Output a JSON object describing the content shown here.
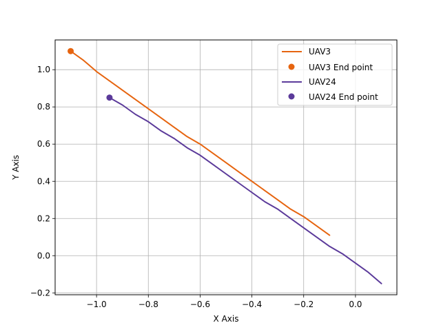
{
  "chart_data": {
    "type": "line",
    "title": "",
    "xlabel": "X Axis",
    "ylabel": "Y Axis",
    "xlim": [
      -1.16,
      0.16
    ],
    "ylim": [
      -0.21,
      1.16
    ],
    "xticks": [
      -1.0,
      -0.8,
      -0.6,
      -0.4,
      -0.2,
      0.0
    ],
    "xtick_labels": [
      "−1.0",
      "−0.8",
      "−0.6",
      "−0.4",
      "−0.2",
      "0.0"
    ],
    "yticks": [
      -0.2,
      0.0,
      0.2,
      0.4,
      0.6,
      0.8,
      1.0
    ],
    "ytick_labels": [
      "−0.2",
      "0.0",
      "0.2",
      "0.4",
      "0.6",
      "0.8",
      "1.0"
    ],
    "grid": true,
    "legend_position": "top-right",
    "series": [
      {
        "name": "UAV3",
        "color": "#e6640f",
        "x": [
          -1.1,
          -1.05,
          -1.0,
          -0.95,
          -0.9,
          -0.85,
          -0.8,
          -0.75,
          -0.7,
          -0.65,
          -0.6,
          -0.55,
          -0.5,
          -0.45,
          -0.4,
          -0.35,
          -0.3,
          -0.25,
          -0.2,
          -0.15,
          -0.1
        ],
        "y": [
          1.1,
          1.05,
          0.99,
          0.94,
          0.89,
          0.84,
          0.79,
          0.74,
          0.69,
          0.64,
          0.6,
          0.55,
          0.5,
          0.45,
          0.4,
          0.35,
          0.3,
          0.25,
          0.21,
          0.16,
          0.11
        ]
      },
      {
        "name": "UAV24",
        "color": "#5b3a9a",
        "x": [
          -0.95,
          -0.9,
          -0.85,
          -0.8,
          -0.75,
          -0.7,
          -0.65,
          -0.6,
          -0.55,
          -0.5,
          -0.45,
          -0.4,
          -0.35,
          -0.3,
          -0.25,
          -0.2,
          -0.15,
          -0.1,
          -0.05,
          0.0,
          0.05,
          0.1
        ],
        "y": [
          0.85,
          0.81,
          0.76,
          0.72,
          0.67,
          0.63,
          0.58,
          0.54,
          0.49,
          0.44,
          0.39,
          0.34,
          0.29,
          0.25,
          0.2,
          0.15,
          0.1,
          0.05,
          0.01,
          -0.04,
          -0.09,
          -0.15
        ]
      }
    ],
    "end_points": [
      {
        "name": "UAV3 End point",
        "color": "#e6640f",
        "x": -1.1,
        "y": 1.1
      },
      {
        "name": "UAV24 End point",
        "color": "#5b3a9a",
        "x": -0.95,
        "y": 0.85
      }
    ]
  }
}
